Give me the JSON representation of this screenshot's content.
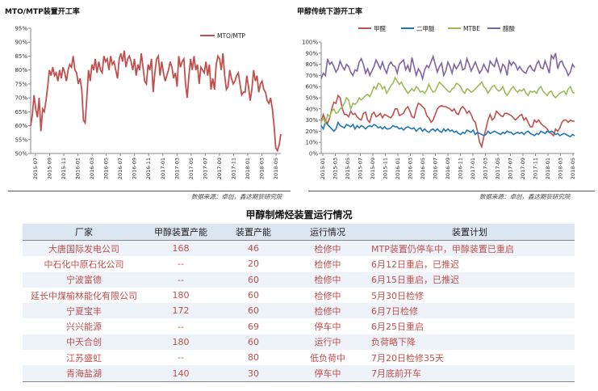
{
  "left_chart": {
    "title": "MTO/MTP装置开工率",
    "source": "数据来源：卓创，鑫达期货研究院"
  },
  "right_chart": {
    "title": "甲醇传统下游开工率",
    "source": "数据来源：卓创，鑫达期货研究院"
  },
  "table": {
    "title": "甲醇制烯烃装置运行情况",
    "headers": [
      "厂家",
      "甲醇装置产能",
      "装置产能",
      "运行情况",
      "装置计划"
    ],
    "rows": [
      [
        "大唐国际发电公司",
        "168",
        "46",
        "检修中",
        "MTP装置仍停车中，甲醇装置已重启"
      ],
      [
        "中石化中原石化公司",
        "--",
        "20",
        "检修中",
        "6月12日重启，已推迟"
      ],
      [
        "宁波富德",
        "--",
        "60",
        "检修中",
        "6月15日重启，已推迟"
      ],
      [
        "延长中煤榆林能化有限公司",
        "180",
        "60",
        "检修中",
        "5月30日检修"
      ],
      [
        "宁夏宝丰",
        "172",
        "60",
        "检修中",
        "6月7日检修"
      ],
      [
        "兴兴能源",
        "--",
        "69",
        "停车中",
        "6月25日重启"
      ],
      [
        "中天合创",
        "180",
        "60",
        "运行中",
        "负荷略下降"
      ],
      [
        "江苏盛虹",
        "--",
        "80",
        "低负荷中",
        "7月20日检修35天"
      ],
      [
        "青海盐湖",
        "140",
        "30",
        "停车中",
        "7月底前开车"
      ]
    ]
  },
  "chart_data": [
    {
      "type": "line",
      "title": "MTO/MTP装置开工率",
      "ylim": [
        50,
        95
      ],
      "yticks": [
        "50%",
        "55%",
        "60%",
        "65%",
        "70%",
        "75%",
        "80%",
        "85%",
        "90%",
        "95%"
      ],
      "x_tick_labels": [
        "2015-07",
        "2015-09",
        "2015-11",
        "2016-01",
        "2016-03",
        "2016-05",
        "2016-07",
        "2016-09",
        "2016-11",
        "2017-01",
        "2017-03",
        "2017-05",
        "2017-07",
        "2017-09",
        "2017-11",
        "2018-01",
        "2018-03",
        "2018-05"
      ],
      "grid": false,
      "legend": "top-right",
      "colors": {
        "MTO/MTP": "#c0504d"
      },
      "series": [
        {
          "name": "MTO/MTP",
          "values": [
            60,
            64,
            71,
            66,
            63,
            70,
            58,
            66,
            65,
            69,
            74,
            80,
            78,
            81,
            78,
            79,
            76,
            80,
            77,
            81,
            79,
            76,
            80,
            82,
            81,
            85,
            80,
            79,
            75,
            77,
            73,
            62,
            61,
            70,
            80,
            76,
            82,
            80,
            84,
            79,
            83,
            80,
            79,
            85,
            83,
            84,
            80,
            85,
            82,
            83,
            80,
            77,
            84,
            86,
            83,
            87,
            81,
            84,
            85,
            83,
            80,
            84,
            78,
            82,
            80,
            86,
            81,
            76,
            75,
            82,
            80,
            84,
            72,
            79,
            84,
            85,
            78,
            83,
            79,
            76,
            78,
            80,
            83,
            81,
            77,
            79,
            74,
            85,
            81,
            83,
            84,
            75,
            70,
            78,
            84,
            80,
            85,
            80,
            82,
            75,
            81,
            80,
            79,
            83,
            78,
            82,
            73,
            77,
            73,
            82,
            85,
            84,
            80,
            86,
            78,
            73,
            74,
            80,
            77,
            75,
            76,
            78,
            79,
            75,
            71,
            72,
            72,
            78,
            74,
            69,
            73,
            80,
            76,
            78,
            72,
            75,
            76,
            73,
            72,
            69,
            68,
            70,
            66,
            60,
            52,
            51,
            53,
            57
          ]
        }
      ]
    },
    {
      "type": "line",
      "ylim": [
        0,
        100
      ],
      "yticks": [
        "0%",
        "10%",
        "20%",
        "30%",
        "40%",
        "50%",
        "60%",
        "70%",
        "80%",
        "90%",
        "100%"
      ],
      "x_tick_labels": [
        "2015-01",
        "2015-03",
        "2015-05",
        "2015-07",
        "2015-09",
        "2015-11",
        "2016-01",
        "2016-03",
        "2016-05",
        "2016-07",
        "2016-09",
        "2016-11",
        "2017-01",
        "2017-03",
        "2017-05",
        "2017-07",
        "2017-09",
        "2017-11",
        "2018-01",
        "2018-03",
        "2018-05"
      ],
      "grid": false,
      "legend": "top-center",
      "legend_labels": [
        "甲醛",
        "二甲醚",
        "MTBE",
        "醋酸"
      ],
      "colors": {
        "甲醛": "#c0504d",
        "二甲醚": "#1f77b4",
        "MTBE": "#9bbb59",
        "醋酸": "#8064a2"
      },
      "series": [
        {
          "name": "甲醛",
          "values": [
            28,
            35,
            30,
            27,
            32,
            40,
            46,
            45,
            52,
            50,
            40,
            35,
            35,
            33,
            38,
            35,
            36,
            33,
            31,
            30,
            36,
            37,
            30,
            28,
            35,
            37,
            33,
            34,
            36,
            32,
            35,
            34,
            33,
            32,
            35,
            40,
            40,
            34,
            35,
            36,
            40,
            42,
            38,
            33,
            32,
            40,
            45,
            44,
            42,
            40,
            34,
            32,
            28,
            30,
            35,
            40,
            42,
            43,
            42,
            42,
            41,
            40,
            38,
            40,
            36,
            35,
            40,
            42,
            40,
            36,
            38,
            35,
            30,
            28,
            20,
            10,
            6,
            15,
            22,
            30,
            35,
            30,
            32,
            38,
            36,
            34,
            33,
            36,
            36,
            35,
            34,
            32,
            30,
            32,
            34,
            35,
            30,
            32,
            28,
            24,
            24,
            30,
            28,
            30,
            27,
            25,
            24,
            22,
            19,
            18,
            16,
            22,
            20,
            23,
            28,
            30,
            30,
            28,
            30,
            29,
            29
          ]
        },
        {
          "name": "二甲醚",
          "values": [
            25,
            22,
            28,
            26,
            24,
            22,
            20,
            22,
            28,
            25,
            24,
            23,
            26,
            25,
            24,
            26,
            22,
            25,
            23,
            25,
            24,
            22,
            24,
            25,
            24,
            26,
            25,
            23,
            24,
            22,
            24,
            22,
            22,
            23,
            25,
            24,
            24,
            22,
            23,
            21,
            23,
            24,
            23,
            22,
            23,
            20,
            22,
            23,
            20,
            22,
            20,
            19,
            21,
            22,
            20,
            22,
            20,
            19,
            22,
            20,
            22,
            20,
            21,
            19,
            20,
            18,
            17,
            19,
            18,
            21,
            20,
            19,
            21,
            17,
            19,
            18,
            17,
            16,
            17,
            20,
            18,
            19,
            20,
            19,
            18,
            17,
            19,
            18,
            20,
            19,
            19,
            17,
            18,
            19,
            18,
            19,
            17,
            19,
            20,
            18,
            17,
            16,
            18,
            17,
            20,
            19,
            18,
            20,
            19,
            20,
            19,
            17,
            18,
            16,
            17,
            18,
            17,
            16,
            15,
            17,
            16
          ]
        },
        {
          "name": "MTBE",
          "values": [
            28,
            32,
            27,
            35,
            33,
            38,
            40,
            36,
            37,
            40,
            42,
            45,
            50,
            48,
            40,
            45,
            44,
            46,
            50,
            48,
            50,
            52,
            53,
            51,
            55,
            60,
            58,
            63,
            62,
            58,
            60,
            54,
            57,
            61,
            63,
            68,
            65,
            62,
            64,
            60,
            57,
            54,
            56,
            58,
            56,
            60,
            58,
            55,
            56,
            54,
            57,
            62,
            58,
            55,
            56,
            60,
            64,
            62,
            60,
            58,
            56,
            55,
            58,
            59,
            63,
            62,
            60,
            56,
            54,
            58,
            57,
            55,
            56,
            58,
            60,
            62,
            64,
            60,
            58,
            54,
            57,
            60,
            61,
            58,
            56,
            57,
            60,
            55,
            52,
            55,
            58,
            60,
            57,
            55,
            57,
            56,
            58,
            54,
            52,
            56,
            55,
            56,
            54,
            58,
            60,
            56,
            54,
            52,
            55,
            56,
            52,
            50,
            52,
            54,
            55,
            56,
            53,
            58,
            60,
            55,
            54
          ]
        },
        {
          "name": "醋酸",
          "values": [
            67,
            72,
            70,
            85,
            80,
            82,
            78,
            73,
            76,
            83,
            78,
            75,
            80,
            78,
            73,
            70,
            75,
            74,
            82,
            85,
            80,
            72,
            76,
            70,
            74,
            78,
            84,
            80,
            76,
            82,
            76,
            72,
            79,
            82,
            79,
            78,
            72,
            80,
            82,
            84,
            75,
            79,
            73,
            86,
            78,
            70,
            76,
            73,
            67,
            75,
            79,
            77,
            82,
            87,
            80,
            73,
            78,
            81,
            70,
            74,
            82,
            78,
            72,
            80,
            76,
            79,
            83,
            75,
            76,
            85,
            80,
            74,
            78,
            82,
            77,
            72,
            75,
            80,
            76,
            73,
            83,
            80,
            78,
            85,
            79,
            73,
            80,
            78,
            70,
            83,
            79,
            82,
            80,
            75,
            78,
            75,
            73,
            72,
            77,
            79,
            75,
            74,
            80,
            83,
            77,
            76,
            83,
            78,
            72,
            88,
            85,
            90,
            76,
            82,
            83,
            78,
            75,
            70,
            73,
            80,
            77
          ]
        }
      ]
    }
  ]
}
